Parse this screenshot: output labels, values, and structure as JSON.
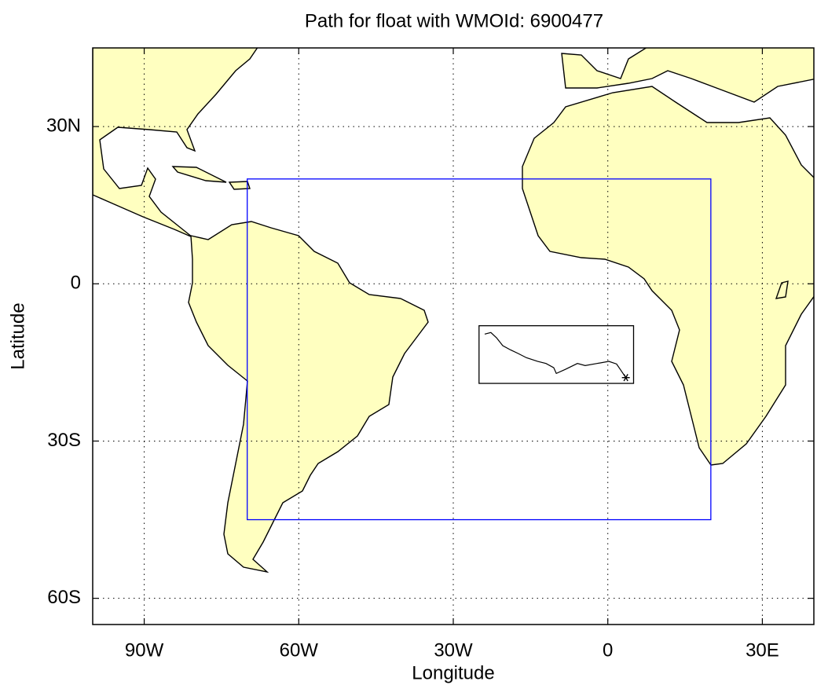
{
  "chart_data": {
    "type": "map",
    "title": "Path for float with WMOId: 6900477",
    "xlabel": "Longitude",
    "ylabel": "Latitude",
    "xlim": [
      -100,
      40
    ],
    "ylim": [
      -65,
      45
    ],
    "xticks": [
      {
        "value": -90,
        "label": "90W"
      },
      {
        "value": -60,
        "label": "60W"
      },
      {
        "value": -30,
        "label": "30W"
      },
      0,
      {
        "value": 30,
        "label": "30E"
      }
    ],
    "yticks": [
      {
        "value": 30,
        "label": "30N"
      },
      0,
      {
        "value": -30,
        "label": "30S"
      },
      {
        "value": -60,
        "label": "60S"
      }
    ],
    "grid": true,
    "land_color": "#ffffc0",
    "regions": [
      {
        "color": "#0000ff",
        "lon": [
          -70,
          20
        ],
        "lat": [
          -45,
          20
        ]
      },
      {
        "color": "#000000",
        "lon": [
          -25,
          5
        ],
        "lat": [
          -19,
          -8
        ]
      }
    ],
    "series": [
      {
        "color": "#000000",
        "x": [
          -23.9,
          -22.7,
          -21.6,
          -20.4,
          -18.9,
          -17.4,
          -15.8,
          -13.6,
          -12.0,
          -10.5,
          -10.0,
          -8.2,
          -5.9,
          -4.4,
          -2.1,
          0.2,
          1.7,
          2.4,
          3.5
        ],
        "y": [
          -9.6,
          -9.3,
          -10.3,
          -11.8,
          -12.6,
          -13.3,
          -14.1,
          -14.8,
          -15.2,
          -16.0,
          -17.1,
          -16.3,
          -15.2,
          -15.6,
          -15.2,
          -14.8,
          -15.3,
          -16.3,
          -17.9
        ]
      }
    ]
  }
}
